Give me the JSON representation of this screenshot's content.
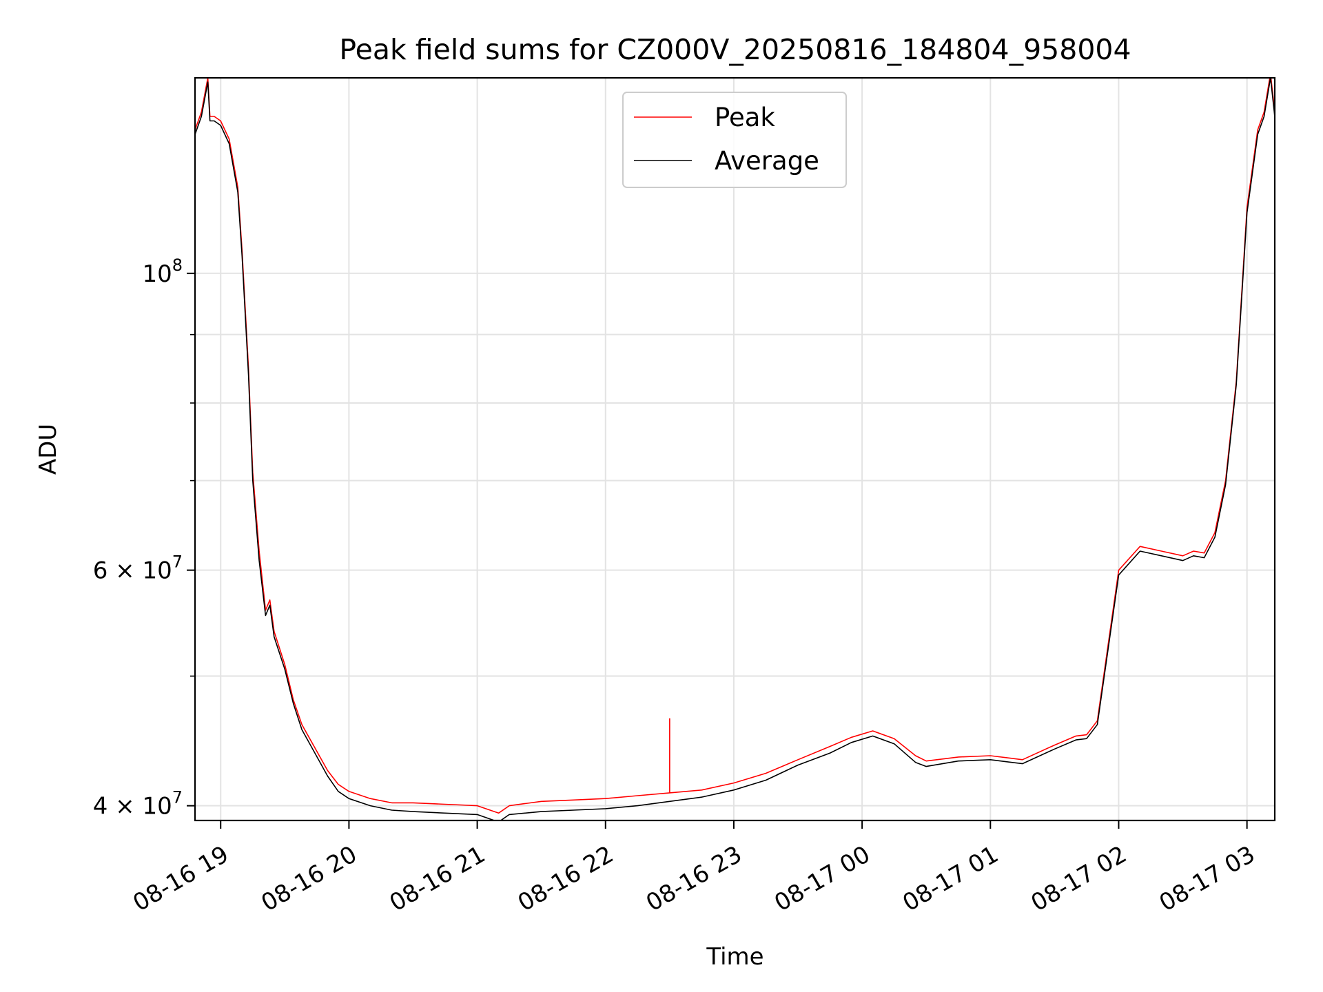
{
  "chart_data": {
    "type": "line",
    "title": "Peak field sums for CZ000V_20250816_184804_958004",
    "xlabel": "Time",
    "ylabel": "ADU",
    "yscale": "log",
    "grid": true,
    "legend_position": "upper center",
    "xlim": [
      "08-16 18:48",
      "08-17 03:13"
    ],
    "ylim": [
      39000000,
      140000000
    ],
    "x_ticks": [
      "08-16 19",
      "08-16 20",
      "08-16 21",
      "08-16 22",
      "08-16 23",
      "08-17 00",
      "08-17 01",
      "08-17 02",
      "08-17 03"
    ],
    "y_tick_labels": [
      {
        "value": 40000000,
        "base": "4",
        "mult": "×",
        "exp_base": "10",
        "exp": "7"
      },
      {
        "value": 60000000,
        "base": "6",
        "mult": "×",
        "exp_base": "10",
        "exp": "7"
      },
      {
        "value": 100000000,
        "base": "",
        "mult": "",
        "exp_base": "10",
        "exp": "8"
      }
    ],
    "x": [
      "08-16 18:48",
      "08-16 18:51",
      "08-16 18:54",
      "08-16 18:55",
      "08-16 18:57",
      "08-16 19:00",
      "08-16 19:04",
      "08-16 19:08",
      "08-16 19:10",
      "08-16 19:13",
      "08-16 19:15",
      "08-16 19:18",
      "08-16 19:21",
      "08-16 19:23",
      "08-16 19:25",
      "08-16 19:30",
      "08-16 19:34",
      "08-16 19:38",
      "08-16 19:43",
      "08-16 19:50",
      "08-16 19:55",
      "08-16 20:00",
      "08-16 20:10",
      "08-16 20:20",
      "08-16 20:30",
      "08-16 20:45",
      "08-16 21:00",
      "08-16 21:10",
      "08-16 21:15",
      "08-16 21:30",
      "08-16 21:45",
      "08-16 22:00",
      "08-16 22:15",
      "08-16 22:30",
      "08-16 22:45",
      "08-16 23:00",
      "08-16 23:15",
      "08-16 23:30",
      "08-16 23:45",
      "08-16 23:55",
      "08-17 00:05",
      "08-17 00:15",
      "08-17 00:25",
      "08-17 00:30",
      "08-17 00:45",
      "08-17 01:00",
      "08-17 01:10",
      "08-17 01:15",
      "08-17 01:30",
      "08-17 01:40",
      "08-17 01:45",
      "08-17 01:50",
      "08-17 02:00",
      "08-17 02:10",
      "08-17 02:20",
      "08-17 02:30",
      "08-17 02:35",
      "08-17 02:40",
      "08-17 02:45",
      "08-17 02:50",
      "08-17 02:55",
      "08-17 03:00",
      "08-17 03:05",
      "08-17 03:08",
      "08-17 03:11",
      "08-17 03:13"
    ],
    "series": [
      {
        "name": "Peak",
        "color": "#ff0000",
        "values": [
          128000000,
          132000000,
          140000000,
          131000000,
          131000000,
          130000000,
          126000000,
          116000000,
          104000000,
          85000000,
          71000000,
          62000000,
          56000000,
          57000000,
          54000000,
          51000000,
          48000000,
          46000000,
          44500000,
          42500000,
          41500000,
          41000000,
          40500000,
          40200000,
          40200000,
          40100000,
          40000000,
          39500000,
          40000000,
          40300000,
          40400000,
          40500000,
          40700000,
          40900000,
          41100000,
          41600000,
          42300000,
          43300000,
          44300000,
          45000000,
          45500000,
          44900000,
          43600000,
          43200000,
          43500000,
          43600000,
          43400000,
          43300000,
          44400000,
          45100000,
          45200000,
          46300000,
          60000000,
          62500000,
          62000000,
          61500000,
          62000000,
          61800000,
          64000000,
          70000000,
          83000000,
          112000000,
          128000000,
          132000000,
          141000000,
          132000000
        ]
      },
      {
        "name": "Average",
        "color": "#000000",
        "values": [
          127000000,
          131000000,
          139000000,
          130000000,
          130000000,
          129000000,
          125000000,
          115000000,
          103000000,
          84000000,
          70000000,
          61000000,
          55500000,
          56500000,
          53500000,
          50600000,
          47700000,
          45600000,
          44100000,
          42100000,
          41000000,
          40500000,
          40000000,
          39700000,
          39600000,
          39500000,
          39400000,
          38900000,
          39400000,
          39600000,
          39700000,
          39800000,
          40000000,
          40300000,
          40600000,
          41100000,
          41800000,
          42900000,
          43800000,
          44600000,
          45100000,
          44500000,
          43100000,
          42800000,
          43200000,
          43300000,
          43100000,
          43000000,
          44100000,
          44800000,
          44900000,
          46000000,
          59500000,
          62000000,
          61500000,
          61000000,
          61500000,
          61300000,
          63500000,
          69500000,
          82500000,
          111000000,
          127000000,
          131000000,
          140000000,
          131000000
        ]
      }
    ],
    "spikes": [
      {
        "series": "Peak",
        "x": "08-16 22:30",
        "y_top": 46500000
      }
    ]
  }
}
